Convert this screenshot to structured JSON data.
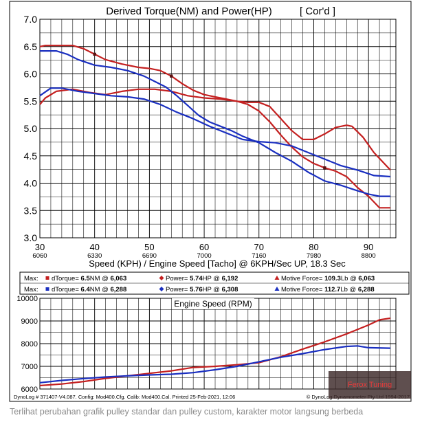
{
  "chart_data": [
    {
      "type": "line",
      "title": "Derived Torque(NM) and Power(HP)",
      "title_tag": "[ Cor'd ]",
      "xlabel": "Speed (KPH) / Engine Speed [Tacho] @ 6KPH/Sec UP, 18.3 Sec",
      "xlim": [
        30,
        95
      ],
      "ylim": [
        3.0,
        7.0
      ],
      "x_ticks": [
        {
          "speed": "30",
          "rpm": "6060"
        },
        {
          "speed": "40",
          "rpm": "6330"
        },
        {
          "speed": "50",
          "rpm": "6690"
        },
        {
          "speed": "60",
          "rpm": "7000"
        },
        {
          "speed": "70",
          "rpm": "7160"
        },
        {
          "speed": "80",
          "rpm": "7980"
        },
        {
          "speed": "90",
          "rpm": "8800"
        }
      ],
      "y_ticks": [
        "7.0",
        "6.5",
        "6.0",
        "5.5",
        "5.0",
        "4.5",
        "4.0",
        "3.5",
        "3.0"
      ],
      "grid": true,
      "series": [
        {
          "color": "#c42020",
          "marker": "square",
          "x": [
            30,
            31,
            33,
            36,
            38,
            40,
            42,
            45,
            48,
            50,
            52,
            54,
            56,
            58,
            60,
            62,
            64,
            66,
            68,
            70,
            72,
            74,
            76,
            78,
            80,
            82,
            84,
            86,
            88,
            90,
            92,
            94
          ],
          "y": [
            6.5,
            6.52,
            6.52,
            6.52,
            6.46,
            6.36,
            6.26,
            6.18,
            6.12,
            6.1,
            6.06,
            5.96,
            5.82,
            5.7,
            5.62,
            5.58,
            5.54,
            5.5,
            5.44,
            5.32,
            5.12,
            4.88,
            4.66,
            4.48,
            4.36,
            4.28,
            4.22,
            4.12,
            3.92,
            3.76,
            3.55,
            3.55
          ]
        },
        {
          "color": "#c42020",
          "marker": "diamond",
          "x": [
            30,
            31,
            33,
            36,
            39,
            42,
            45,
            48,
            51,
            54,
            57,
            60,
            63,
            66,
            68,
            70,
            72,
            74,
            76,
            78,
            80,
            82,
            84,
            86,
            87,
            89,
            91,
            94
          ],
          "y": [
            5.44,
            5.56,
            5.68,
            5.72,
            5.66,
            5.62,
            5.68,
            5.72,
            5.72,
            5.68,
            5.6,
            5.56,
            5.54,
            5.5,
            5.48,
            5.48,
            5.4,
            5.18,
            4.96,
            4.8,
            4.8,
            4.9,
            5.02,
            5.06,
            5.04,
            4.84,
            4.56,
            4.24
          ]
        },
        {
          "color": "#1a2fc0",
          "marker": "square",
          "x": [
            30,
            31,
            33,
            35,
            37,
            40,
            43,
            46,
            49,
            51,
            53,
            55,
            57,
            59,
            61,
            63,
            65,
            67,
            70,
            73,
            76,
            79,
            82,
            85,
            88,
            90,
            92,
            94
          ],
          "y": [
            6.42,
            6.42,
            6.42,
            6.36,
            6.26,
            6.16,
            6.12,
            6.06,
            5.96,
            5.86,
            5.76,
            5.6,
            5.42,
            5.24,
            5.12,
            5.04,
            4.96,
            4.86,
            4.74,
            4.56,
            4.4,
            4.2,
            4.04,
            3.96,
            3.86,
            3.8,
            3.76,
            3.76
          ]
        },
        {
          "color": "#1a2fc0",
          "marker": "triangle",
          "x": [
            30,
            32,
            34,
            37,
            40,
            43,
            46,
            49,
            52,
            55,
            58,
            61,
            64,
            67,
            70,
            73,
            76,
            79,
            82,
            85,
            88,
            91,
            94
          ],
          "y": [
            5.6,
            5.74,
            5.74,
            5.68,
            5.64,
            5.6,
            5.58,
            5.54,
            5.44,
            5.3,
            5.18,
            5.04,
            4.92,
            4.8,
            4.76,
            4.74,
            4.68,
            4.56,
            4.44,
            4.32,
            4.24,
            4.14,
            4.12
          ]
        }
      ]
    },
    {
      "type": "line",
      "title": "Engine Speed (RPM)",
      "xlim": [
        30,
        95
      ],
      "ylim": [
        6000,
        10000
      ],
      "y_ticks": [
        "10000",
        "9000",
        "8000",
        "7000",
        "6000"
      ],
      "grid": true,
      "series": [
        {
          "color": "#c42020",
          "x": [
            30,
            34,
            38,
            42,
            46,
            50,
            54,
            58,
            62,
            66,
            70,
            74,
            78,
            82,
            86,
            90,
            92,
            94
          ],
          "y": [
            6150,
            6220,
            6330,
            6470,
            6580,
            6690,
            6800,
            6950,
            7000,
            7070,
            7160,
            7420,
            7760,
            8080,
            8430,
            8820,
            9050,
            9120
          ]
        },
        {
          "color": "#1a2fc0",
          "x": [
            30,
            34,
            38,
            42,
            46,
            50,
            54,
            58,
            62,
            66,
            70,
            74,
            78,
            82,
            86,
            88,
            90,
            94
          ],
          "y": [
            6280,
            6380,
            6460,
            6530,
            6580,
            6620,
            6650,
            6720,
            6850,
            7000,
            7200,
            7400,
            7560,
            7740,
            7880,
            7900,
            7820,
            7800
          ]
        }
      ]
    }
  ],
  "summary": {
    "rows": [
      {
        "prefix": "Max:",
        "color": "#c42020",
        "items": [
          {
            "marker": "square",
            "label": "dTorque= ",
            "value": "6.5",
            "unit": "NM @ ",
            "at": "6,063"
          },
          {
            "marker": "diamond",
            "label": "Power= ",
            "value": "5.74",
            "unit": "HP @ ",
            "at": "6,192"
          },
          {
            "marker": "triangle",
            "label": "Motive Force= ",
            "value": "109.3",
            "unit": "Lb @ ",
            "at": "6,063"
          }
        ]
      },
      {
        "prefix": "Max:",
        "color": "#1a2fc0",
        "items": [
          {
            "marker": "square",
            "label": "dTorque= ",
            "value": "6.4",
            "unit": "NM @ ",
            "at": "6,288"
          },
          {
            "marker": "diamond",
            "label": "Power= ",
            "value": "5.76",
            "unit": "HP @ ",
            "at": "6,308"
          },
          {
            "marker": "triangle",
            "label": "Motive Force= ",
            "value": "112.7",
            "unit": "Lb @ ",
            "at": "6,288"
          }
        ]
      }
    ]
  },
  "footer": {
    "left": "DynoLog # 371407-V4.087. Config: Mod400.Cfg. Calib: Mod400.Cal. Printed 25-Feb-2021, 12:06",
    "right": "© DynoLog Dynamometer Pty Ltd 1994-2017"
  },
  "watermark": "Ferox Tuning",
  "caption": "Terlihat perubahan grafik pulley standar dan pulley custom, karakter motor langsung berbeda"
}
